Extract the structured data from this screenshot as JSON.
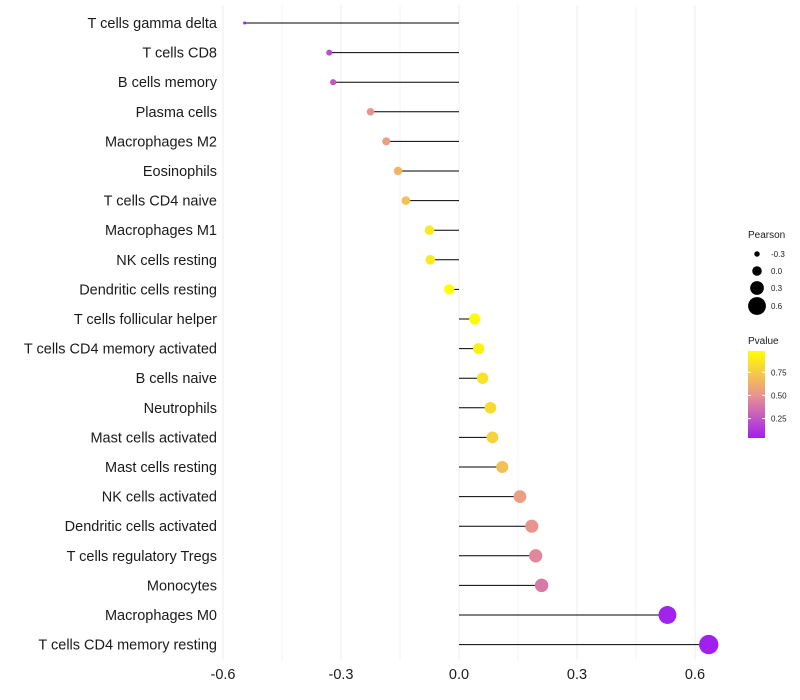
{
  "chart_data": {
    "type": "lollipop",
    "title": "",
    "xlabel": "",
    "ylabel": "",
    "xlim": [
      -0.6,
      0.65
    ],
    "x_ticks": [
      -0.6,
      -0.3,
      0.0,
      0.3,
      0.6
    ],
    "x_tick_labels": [
      "-0.6",
      "-0.3",
      "0.0",
      "0.3",
      "0.6"
    ],
    "grid": true,
    "categories": [
      "T cells gamma delta",
      "T cells CD8",
      "B cells memory",
      "Plasma cells",
      "Macrophages M2",
      "Eosinophils",
      "T cells CD4 naive",
      "Macrophages M1",
      "NK cells resting",
      "Dendritic cells resting",
      "T cells follicular helper",
      "T cells CD4 memory activated",
      "B cells naive",
      "Neutrophils",
      "Mast cells activated",
      "Mast cells resting",
      "NK cells activated",
      "Dendritic cells activated",
      "T cells regulatory  Tregs",
      "Monocytes",
      "Macrophages M0",
      "T cells CD4 memory resting"
    ],
    "pearson": [
      -0.545,
      -0.33,
      -0.32,
      -0.225,
      -0.185,
      -0.155,
      -0.135,
      -0.075,
      -0.073,
      -0.025,
      0.04,
      0.05,
      0.06,
      0.08,
      0.085,
      0.11,
      0.155,
      0.185,
      0.195,
      0.21,
      0.53,
      0.635
    ],
    "pvalue": [
      0.04,
      0.22,
      0.25,
      0.5,
      0.55,
      0.65,
      0.7,
      0.88,
      0.88,
      0.97,
      0.96,
      0.92,
      0.85,
      0.82,
      0.78,
      0.7,
      0.55,
      0.5,
      0.45,
      0.4,
      0.05,
      0.04
    ],
    "size_legend": {
      "title": "Pearson",
      "values": [
        -0.3,
        0.0,
        0.3,
        0.6
      ],
      "labels": [
        "-0.3",
        "0.0",
        "0.3",
        "0.6"
      ]
    },
    "color_legend": {
      "title": "Pvalue",
      "range": [
        0.04,
        0.98
      ],
      "ticks": [
        0.75,
        0.5,
        0.25
      ],
      "tick_labels": [
        "0.75",
        "0.50",
        "0.25"
      ],
      "low_color": "#a020f0",
      "mid_color": "#e9968e",
      "high_color": "#ffff00"
    }
  }
}
